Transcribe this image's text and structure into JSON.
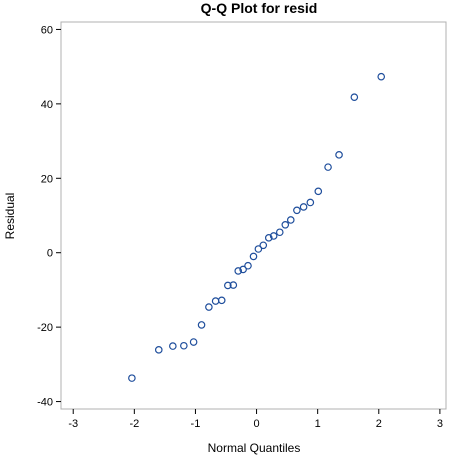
{
  "chart_data": {
    "type": "scatter",
    "title": "Q-Q Plot for resid",
    "xlabel": "Normal Quantiles",
    "ylabel": "Residual",
    "xlim": [
      -3.2,
      3.1
    ],
    "ylim": [
      -42,
      62
    ],
    "xticks": [
      -3,
      -2,
      -1,
      0,
      1,
      2,
      3
    ],
    "yticks": [
      -40,
      -20,
      0,
      20,
      40,
      60
    ],
    "grid": false,
    "marker": "open-circle",
    "marker_color": "#1f4e9c",
    "frame_color": "#b0b0b0",
    "points": [
      {
        "x": -2.04,
        "y": -33.7
      },
      {
        "x": -1.6,
        "y": -26.1
      },
      {
        "x": -1.37,
        "y": -25.1
      },
      {
        "x": -1.19,
        "y": -25.0
      },
      {
        "x": -1.03,
        "y": -24.0
      },
      {
        "x": -0.9,
        "y": -19.4
      },
      {
        "x": -0.78,
        "y": -14.6
      },
      {
        "x": -0.67,
        "y": -13.0
      },
      {
        "x": -0.57,
        "y": -12.8
      },
      {
        "x": -0.47,
        "y": -8.8
      },
      {
        "x": -0.38,
        "y": -8.7
      },
      {
        "x": -0.3,
        "y": -4.9
      },
      {
        "x": -0.22,
        "y": -4.5
      },
      {
        "x": -0.14,
        "y": -3.5
      },
      {
        "x": -0.05,
        "y": -1.0
      },
      {
        "x": 0.03,
        "y": 1.0
      },
      {
        "x": 0.11,
        "y": 2.0
      },
      {
        "x": 0.2,
        "y": 4.0
      },
      {
        "x": 0.28,
        "y": 4.5
      },
      {
        "x": 0.38,
        "y": 5.5
      },
      {
        "x": 0.47,
        "y": 7.5
      },
      {
        "x": 0.56,
        "y": 8.8
      },
      {
        "x": 0.66,
        "y": 11.4
      },
      {
        "x": 0.77,
        "y": 12.3
      },
      {
        "x": 0.88,
        "y": 13.5
      },
      {
        "x": 1.01,
        "y": 16.5
      },
      {
        "x": 1.17,
        "y": 23.0
      },
      {
        "x": 1.35,
        "y": 26.3
      },
      {
        "x": 1.6,
        "y": 41.8
      },
      {
        "x": 2.04,
        "y": 47.3
      }
    ]
  }
}
